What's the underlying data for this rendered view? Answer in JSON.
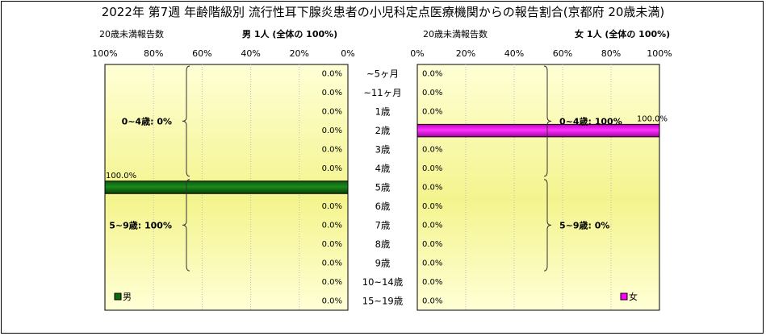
{
  "title": "2022年 第7週 年齢階級別 流行性耳下腺炎患者の小児科定点医療機関からの報告割合(京都府 20歳未満)",
  "left_panel": {
    "header": "20歳未満報告数",
    "sex_label": "男 1人 (全体の 100%)"
  },
  "right_panel": {
    "header": "20歳未満報告数",
    "sex_label": "女 1人 (全体の 100%)"
  },
  "colors": {
    "male": "#0b6b0b",
    "female": "#ff00ff",
    "plot_bg_top": "#ffffd6",
    "plot_bg_mid": "#f4f48e"
  },
  "chart_data": {
    "type": "bar",
    "orientation": "horizontal",
    "categories": [
      "~5ヶ月",
      "~11ヶ月",
      "1歳",
      "2歳",
      "3歳",
      "4歳",
      "5歳",
      "6歳",
      "7歳",
      "8歳",
      "9歳",
      "10~14歳",
      "15~19歳"
    ],
    "x_ticks_left": [
      "100%",
      "80%",
      "60%",
      "40%",
      "20%",
      "0%"
    ],
    "x_ticks_right": [
      "0%",
      "20%",
      "40%",
      "60%",
      "80%",
      "100%"
    ],
    "xlim": [
      0,
      100
    ],
    "series": [
      {
        "name": "男",
        "side": "left",
        "values": [
          0,
          0,
          0,
          0,
          0,
          0,
          100,
          0,
          0,
          0,
          0,
          0,
          0
        ],
        "labels": [
          "0.0%",
          "0.0%",
          "0.0%",
          "0.0%",
          "0.0%",
          "0.0%",
          "100.0%",
          "0.0%",
          "0.0%",
          "0.0%",
          "0.0%",
          "0.0%",
          "0.0%"
        ],
        "group_labels": [
          "0~4歳: 0%",
          "5~9歳: 100%"
        ]
      },
      {
        "name": "女",
        "side": "right",
        "values": [
          0,
          0,
          0,
          100,
          0,
          0,
          0,
          0,
          0,
          0,
          0,
          0,
          0
        ],
        "labels": [
          "0.0%",
          "0.0%",
          "0.0%",
          "100.0%",
          "0.0%",
          "0.0%",
          "0.0%",
          "0.0%",
          "0.0%",
          "0.0%",
          "0.0%",
          "0.0%",
          "0.0%"
        ],
        "group_labels": [
          "0~4歳: 100%",
          "5~9歳: 0%"
        ]
      }
    ],
    "legend": [
      "男",
      "女"
    ]
  }
}
